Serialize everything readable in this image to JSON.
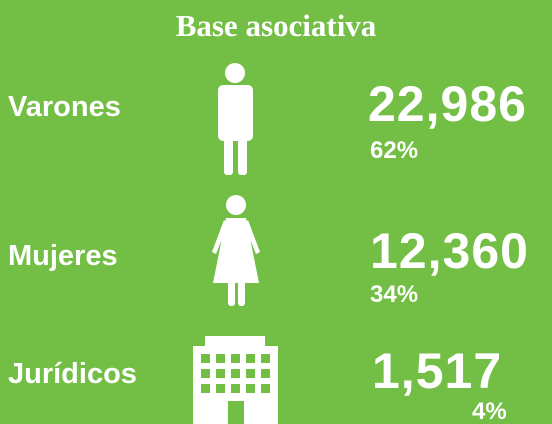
{
  "title": "Base asociativa",
  "rows": [
    {
      "label": "Varones",
      "value": "22,986",
      "percent": "62%"
    },
    {
      "label": "Mujeres",
      "value": "12,360",
      "percent": "34%"
    },
    {
      "label": "Jurídicos",
      "value": "1,517",
      "percent": "4%"
    }
  ]
}
